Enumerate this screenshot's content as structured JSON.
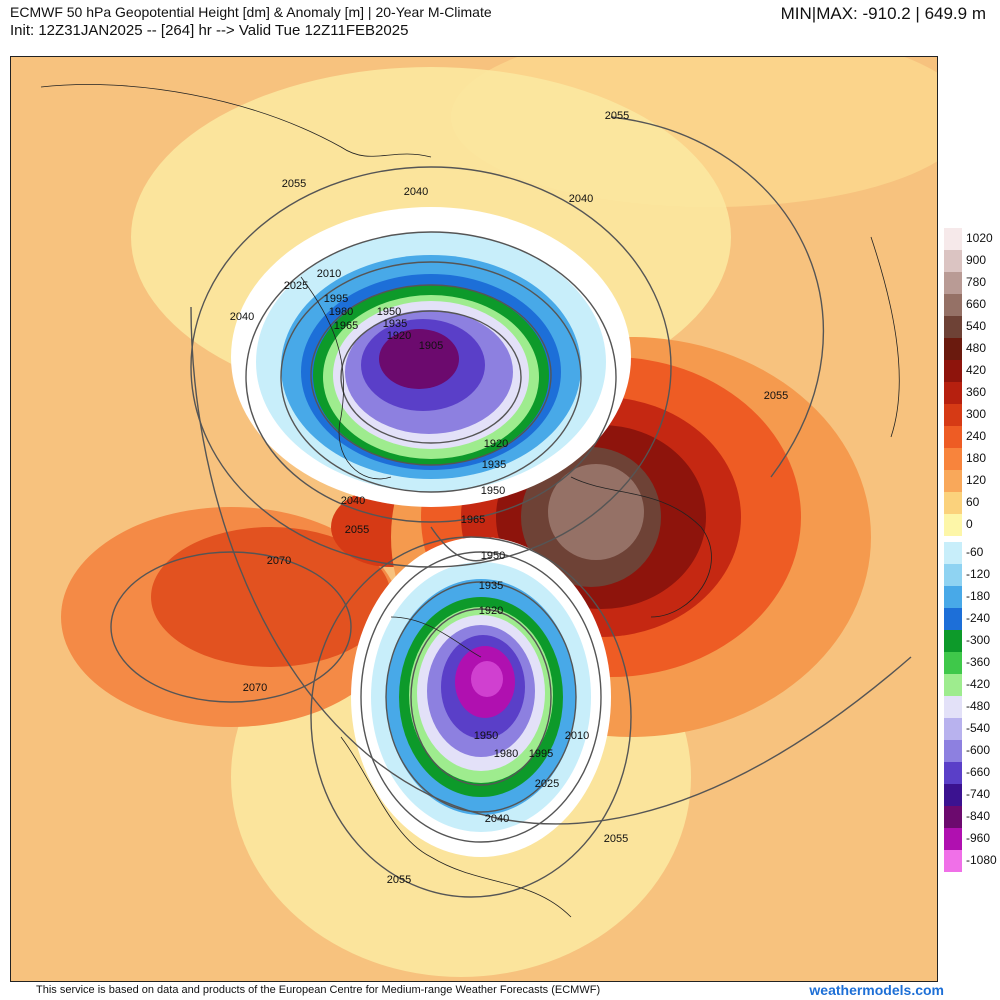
{
  "header": {
    "title": "ECMWF 50 hPa Geopotential Height [dm] & Anomaly [m] | 20-Year M-Climate",
    "subtitle": "Init: 12Z31JAN2025 -- [264] hr --> Valid Tue 12Z11FEB2025",
    "minmax": "MIN|MAX: -910.2 | 649.9 m"
  },
  "legend": {
    "positive": [
      {
        "label": "1020",
        "color": "#f6e9ea"
      },
      {
        "label": "900",
        "color": "#dbc4c2"
      },
      {
        "label": "780",
        "color": "#b99b95"
      },
      {
        "label": "660",
        "color": "#957166"
      },
      {
        "label": "540",
        "color": "#6e4236"
      },
      {
        "label": "480",
        "color": "#6a1a0e"
      },
      {
        "label": "420",
        "color": "#8e140c"
      },
      {
        "label": "360",
        "color": "#b6200f"
      },
      {
        "label": "300",
        "color": "#d63a15"
      },
      {
        "label": "240",
        "color": "#ee5c24"
      },
      {
        "label": "180",
        "color": "#f8843c"
      },
      {
        "label": "120",
        "color": "#f9a85a"
      },
      {
        "label": "60",
        "color": "#fbd27c"
      },
      {
        "label": "0",
        "color": "#fdf6a8"
      }
    ],
    "negative": [
      {
        "label": "-60",
        "color": "#c8eefa"
      },
      {
        "label": "-120",
        "color": "#8fd3f2"
      },
      {
        "label": "-180",
        "color": "#48a9e8"
      },
      {
        "label": "-240",
        "color": "#1d6fd8"
      },
      {
        "label": "-300",
        "color": "#0d9a2a"
      },
      {
        "label": "-360",
        "color": "#3fc84a"
      },
      {
        "label": "-420",
        "color": "#9eec8e"
      },
      {
        "label": "-480",
        "color": "#e3e1f8"
      },
      {
        "label": "-540",
        "color": "#b8b2ee"
      },
      {
        "label": "-600",
        "color": "#8d80e0"
      },
      {
        "label": "-660",
        "color": "#5a3fc8"
      },
      {
        "label": "-740",
        "color": "#3b1290"
      },
      {
        "label": "-840",
        "color": "#6c0a6e"
      },
      {
        "label": "-960",
        "color": "#b010b0"
      },
      {
        "label": "-1080",
        "color": "#f070e8"
      }
    ]
  },
  "contour_labels": [
    "2055",
    "2040",
    "2040",
    "2055",
    "2010",
    "2025",
    "1995",
    "1980",
    "1950",
    "1935",
    "1920",
    "1905",
    "1965",
    "2040",
    "1920",
    "1935",
    "1950",
    "1965",
    "2040",
    "2055",
    "2070",
    "2070",
    "2055",
    "1950",
    "1935",
    "1920",
    "1950",
    "1980",
    "1995",
    "2010",
    "2025",
    "2040",
    "2055",
    "2055"
  ],
  "footer": {
    "credit": "This service is based on data and products of the European Centre for Medium-range Weather Forecasts (ECMWF)",
    "brand": "weathermodels.com"
  }
}
